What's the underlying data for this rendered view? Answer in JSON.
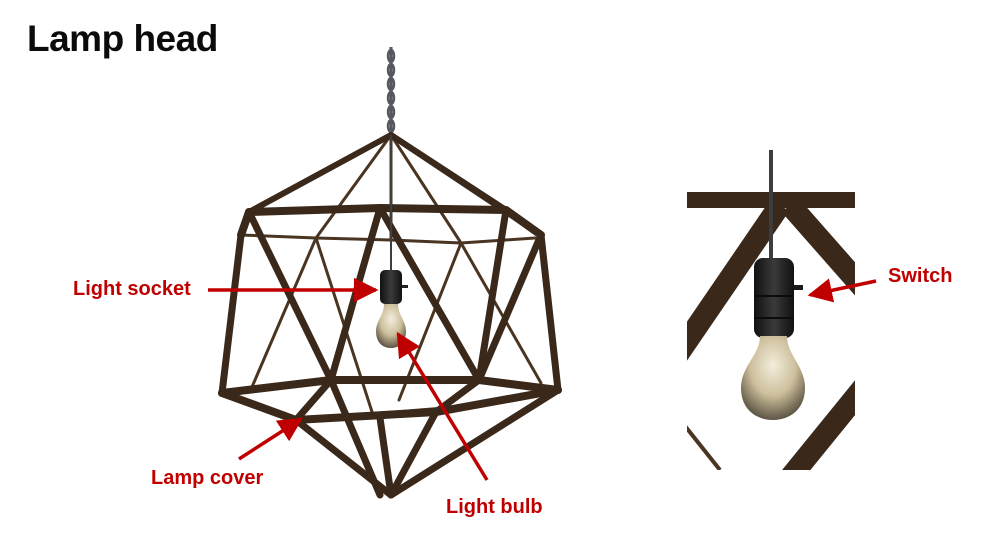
{
  "title": "Lamp head",
  "labels": {
    "socket": "Light socket",
    "cover": "Lamp cover",
    "bulb": "Light bulb",
    "switch": "Switch"
  },
  "colors": {
    "frame": "#3a281a",
    "chain": "#55595e",
    "socket": "#1f1f1f",
    "label": "#c00000"
  }
}
